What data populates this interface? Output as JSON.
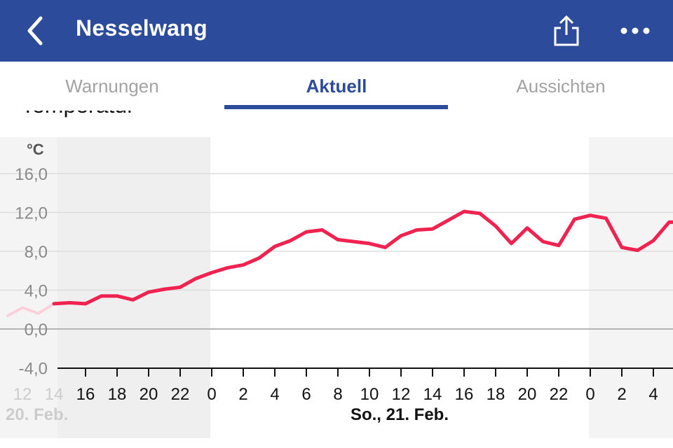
{
  "app_bar": {
    "title": "Nesselwang",
    "back_icon": "chevron-left-icon",
    "share_icon": "share-icon",
    "more_icon": "more-horizontal-icon",
    "background": "#2c4b9b"
  },
  "tabs": [
    {
      "label": "Warnungen",
      "active": false
    },
    {
      "label": "Aktuell",
      "active": true
    },
    {
      "label": "Aussichten",
      "active": false
    }
  ],
  "section_title": "Temperatur",
  "chart_data": {
    "type": "line",
    "ylabel": "°C",
    "ylim": [
      -4,
      16
    ],
    "y_ticks": [
      "16,0",
      "12,0",
      "8,0",
      "4,0",
      "0,0",
      "-4,0"
    ],
    "x_tick_labels": [
      "12",
      "14",
      "16",
      "18",
      "20",
      "22",
      "0",
      "2",
      "4",
      "6",
      "8",
      "10",
      "12",
      "14",
      "16",
      "18",
      "20",
      "22",
      "0",
      "2",
      "4"
    ],
    "day_labels": [
      "20. Feb.",
      "So., 21. Feb."
    ],
    "grid": true,
    "line_color": "#f0224f",
    "series": [
      {
        "values": [
          1.3,
          2.2,
          1.6,
          2.6,
          2.7,
          2.6,
          3.4,
          3.4,
          3.0,
          3.8,
          4.1,
          4.3,
          5.2,
          5.8,
          6.3,
          6.6,
          7.3,
          8.5,
          9.1,
          10.0,
          10.2,
          9.2,
          9.0,
          8.8,
          8.4,
          9.6,
          10.2,
          10.3,
          11.2,
          12.1,
          11.9,
          10.6,
          8.8,
          10.4,
          9.0,
          8.6,
          11.3,
          11.7,
          11.4,
          8.4,
          8.1,
          9.1,
          11.0,
          11.0
        ]
      }
    ]
  }
}
